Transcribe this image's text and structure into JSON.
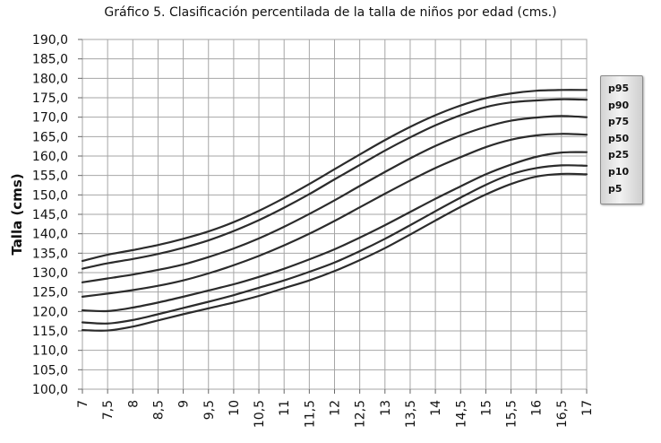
{
  "chart_data": {
    "type": "line",
    "title": "Gráfico 5. Clasificación percentilada de la talla de niños por edad (cms.)",
    "ylabel": "Talla (cms)",
    "xlabel": "",
    "xlim": [
      7,
      17
    ],
    "ylim": [
      100,
      190
    ],
    "x_ticks": [
      "7",
      "7,5",
      "8",
      "8,5",
      "9",
      "9,5",
      "10",
      "10,5",
      "11",
      "11,5",
      "12",
      "12,5",
      "13",
      "13,5",
      "14",
      "14,5",
      "15",
      "15,5",
      "16",
      "16,5",
      "17"
    ],
    "y_ticks": [
      "100,0",
      "105,0",
      "110,0",
      "115,0",
      "120,0",
      "125,0",
      "130,0",
      "135,0",
      "140,0",
      "145,0",
      "150,0",
      "155,0",
      "160,0",
      "165,0",
      "170,0",
      "175,0",
      "180,0",
      "185,0",
      "190,0"
    ],
    "grid": true,
    "legend_position": "right",
    "line_color": "#2b2b2b",
    "x": [
      7,
      7.5,
      8,
      8.5,
      9,
      9.5,
      10,
      10.5,
      11,
      11.5,
      12,
      12.5,
      13,
      13.5,
      14,
      14.5,
      15,
      15.5,
      16,
      16.5,
      17
    ],
    "series": [
      {
        "name": "p95",
        "values": [
          133.0,
          134.6,
          135.8,
          137.1,
          138.7,
          140.6,
          143.0,
          145.9,
          149.2,
          152.8,
          156.6,
          160.4,
          164.1,
          167.5,
          170.5,
          173.0,
          174.9,
          176.1,
          176.8,
          177.0,
          177.0
        ]
      },
      {
        "name": "p90",
        "values": [
          131.0,
          132.4,
          133.5,
          134.8,
          136.4,
          138.3,
          140.7,
          143.5,
          146.7,
          150.2,
          154.0,
          157.7,
          161.4,
          164.8,
          167.9,
          170.5,
          172.6,
          173.8,
          174.3,
          174.6,
          174.5
        ]
      },
      {
        "name": "p75",
        "values": [
          127.5,
          128.5,
          129.5,
          130.7,
          132.1,
          134.0,
          136.2,
          138.8,
          141.8,
          145.1,
          148.6,
          152.3,
          155.9,
          159.4,
          162.6,
          165.3,
          167.5,
          169.1,
          169.9,
          170.3,
          170.0
        ]
      },
      {
        "name": "p50",
        "values": [
          123.8,
          124.6,
          125.5,
          126.6,
          128.0,
          129.8,
          131.9,
          134.3,
          137.0,
          140.0,
          143.3,
          146.8,
          150.3,
          153.7,
          156.9,
          159.7,
          162.3,
          164.2,
          165.3,
          165.7,
          165.5
        ]
      },
      {
        "name": "p25",
        "values": [
          120.3,
          120.1,
          121.0,
          122.3,
          123.8,
          125.4,
          127.0,
          128.9,
          131.0,
          133.4,
          136.0,
          139.0,
          142.2,
          145.6,
          149.0,
          152.2,
          155.3,
          157.8,
          159.8,
          160.9,
          161.0
        ]
      },
      {
        "name": "p10",
        "values": [
          117.2,
          116.9,
          117.8,
          119.3,
          120.9,
          122.5,
          124.2,
          126.1,
          128.0,
          130.2,
          132.6,
          135.5,
          138.7,
          142.2,
          145.8,
          149.3,
          152.6,
          155.3,
          156.9,
          157.6,
          157.5
        ]
      },
      {
        "name": "p5",
        "values": [
          115.2,
          115.1,
          116.1,
          117.7,
          119.3,
          120.8,
          122.3,
          124.0,
          126.0,
          128.0,
          130.4,
          133.2,
          136.3,
          139.8,
          143.4,
          146.9,
          150.1,
          152.8,
          154.7,
          155.4,
          155.3
        ]
      }
    ]
  }
}
